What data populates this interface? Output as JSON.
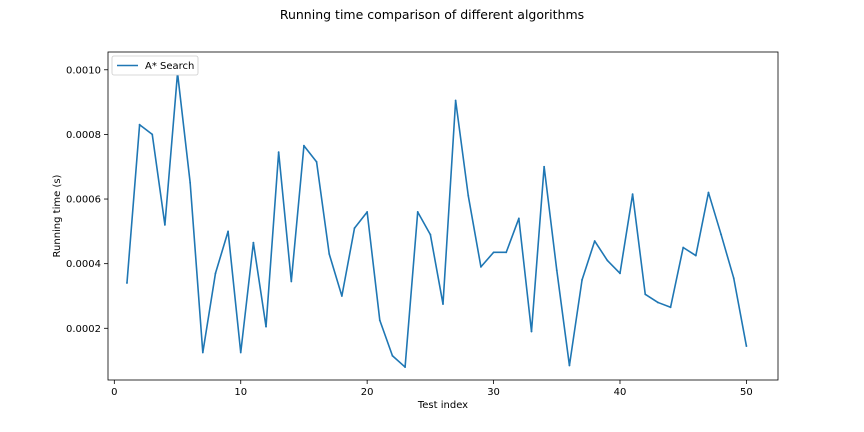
{
  "chart_data": {
    "type": "line",
    "title": "Running time comparison of different algorithms",
    "xlabel": "Test index",
    "ylabel": "Running time (s)",
    "xlim": [
      -0.5,
      52.5
    ],
    "ylim": [
      4e-05,
      0.001055
    ],
    "xticks": [
      0,
      10,
      20,
      30,
      40,
      50
    ],
    "yticks": [
      0.0002,
      0.0004,
      0.0006,
      0.0008,
      0.001
    ],
    "ytick_labels": [
      "0.0002",
      "0.0004",
      "0.0006",
      "0.0008",
      "0.0010"
    ],
    "grid": false,
    "legend": "upper left",
    "series": [
      {
        "name": "A* Search",
        "color": "#1f77b4",
        "x": [
          1,
          2,
          3,
          4,
          5,
          6,
          7,
          8,
          9,
          10,
          11,
          12,
          13,
          14,
          15,
          16,
          17,
          18,
          19,
          20,
          21,
          22,
          23,
          24,
          25,
          26,
          27,
          28,
          29,
          30,
          31,
          32,
          33,
          34,
          35,
          36,
          37,
          38,
          39,
          40,
          41,
          42,
          43,
          44,
          45,
          46,
          47,
          48,
          49,
          50
        ],
        "y": [
          0.00034,
          0.00083,
          0.0008,
          0.00052,
          0.00099,
          0.00065,
          0.000125,
          0.00037,
          0.0005,
          0.000125,
          0.000465,
          0.000205,
          0.000745,
          0.000345,
          0.000765,
          0.000715,
          0.00043,
          0.0003,
          0.00051,
          0.00056,
          0.000225,
          0.000115,
          8e-05,
          0.00056,
          0.00049,
          0.000275,
          0.000905,
          0.00061,
          0.00039,
          0.000435,
          0.000435,
          0.00054,
          0.00019,
          0.0007,
          0.00038,
          8.5e-05,
          0.00035,
          0.00047,
          0.00041,
          0.00037,
          0.000615,
          0.000305,
          0.00028,
          0.000265,
          0.00045,
          0.000425,
          0.00062,
          0.00049,
          0.000355,
          0.000145
        ]
      }
    ]
  }
}
